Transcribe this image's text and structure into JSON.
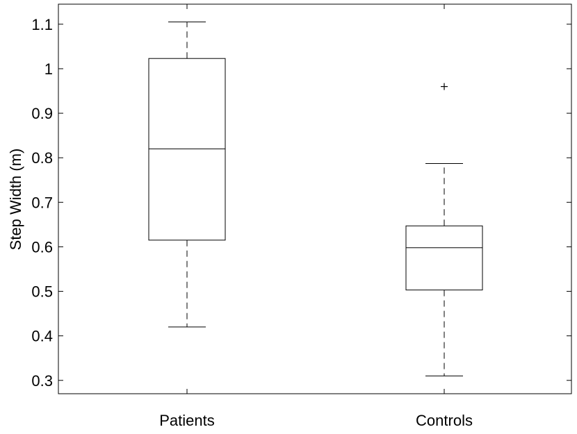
{
  "chart_data": {
    "type": "box",
    "title": "",
    "xlabel": "",
    "ylabel": "Step Width (m)",
    "ylim": [
      0.27,
      1.145
    ],
    "yticks": [
      "0.3",
      "0.4",
      "0.5",
      "0.6",
      "0.7",
      "0.8",
      "0.9",
      "1",
      "1.1"
    ],
    "grid": false,
    "categories": [
      "Patients",
      "Controls"
    ],
    "boxes": [
      {
        "category": "Patients",
        "whisker_low": 0.42,
        "q1": 0.615,
        "median": 0.82,
        "q3": 1.023,
        "whisker_high": 1.105,
        "outliers": []
      },
      {
        "category": "Controls",
        "whisker_low": 0.31,
        "q1": 0.503,
        "median": 0.598,
        "q3": 0.647,
        "whisker_high": 0.787,
        "outliers": [
          0.96
        ]
      }
    ]
  }
}
